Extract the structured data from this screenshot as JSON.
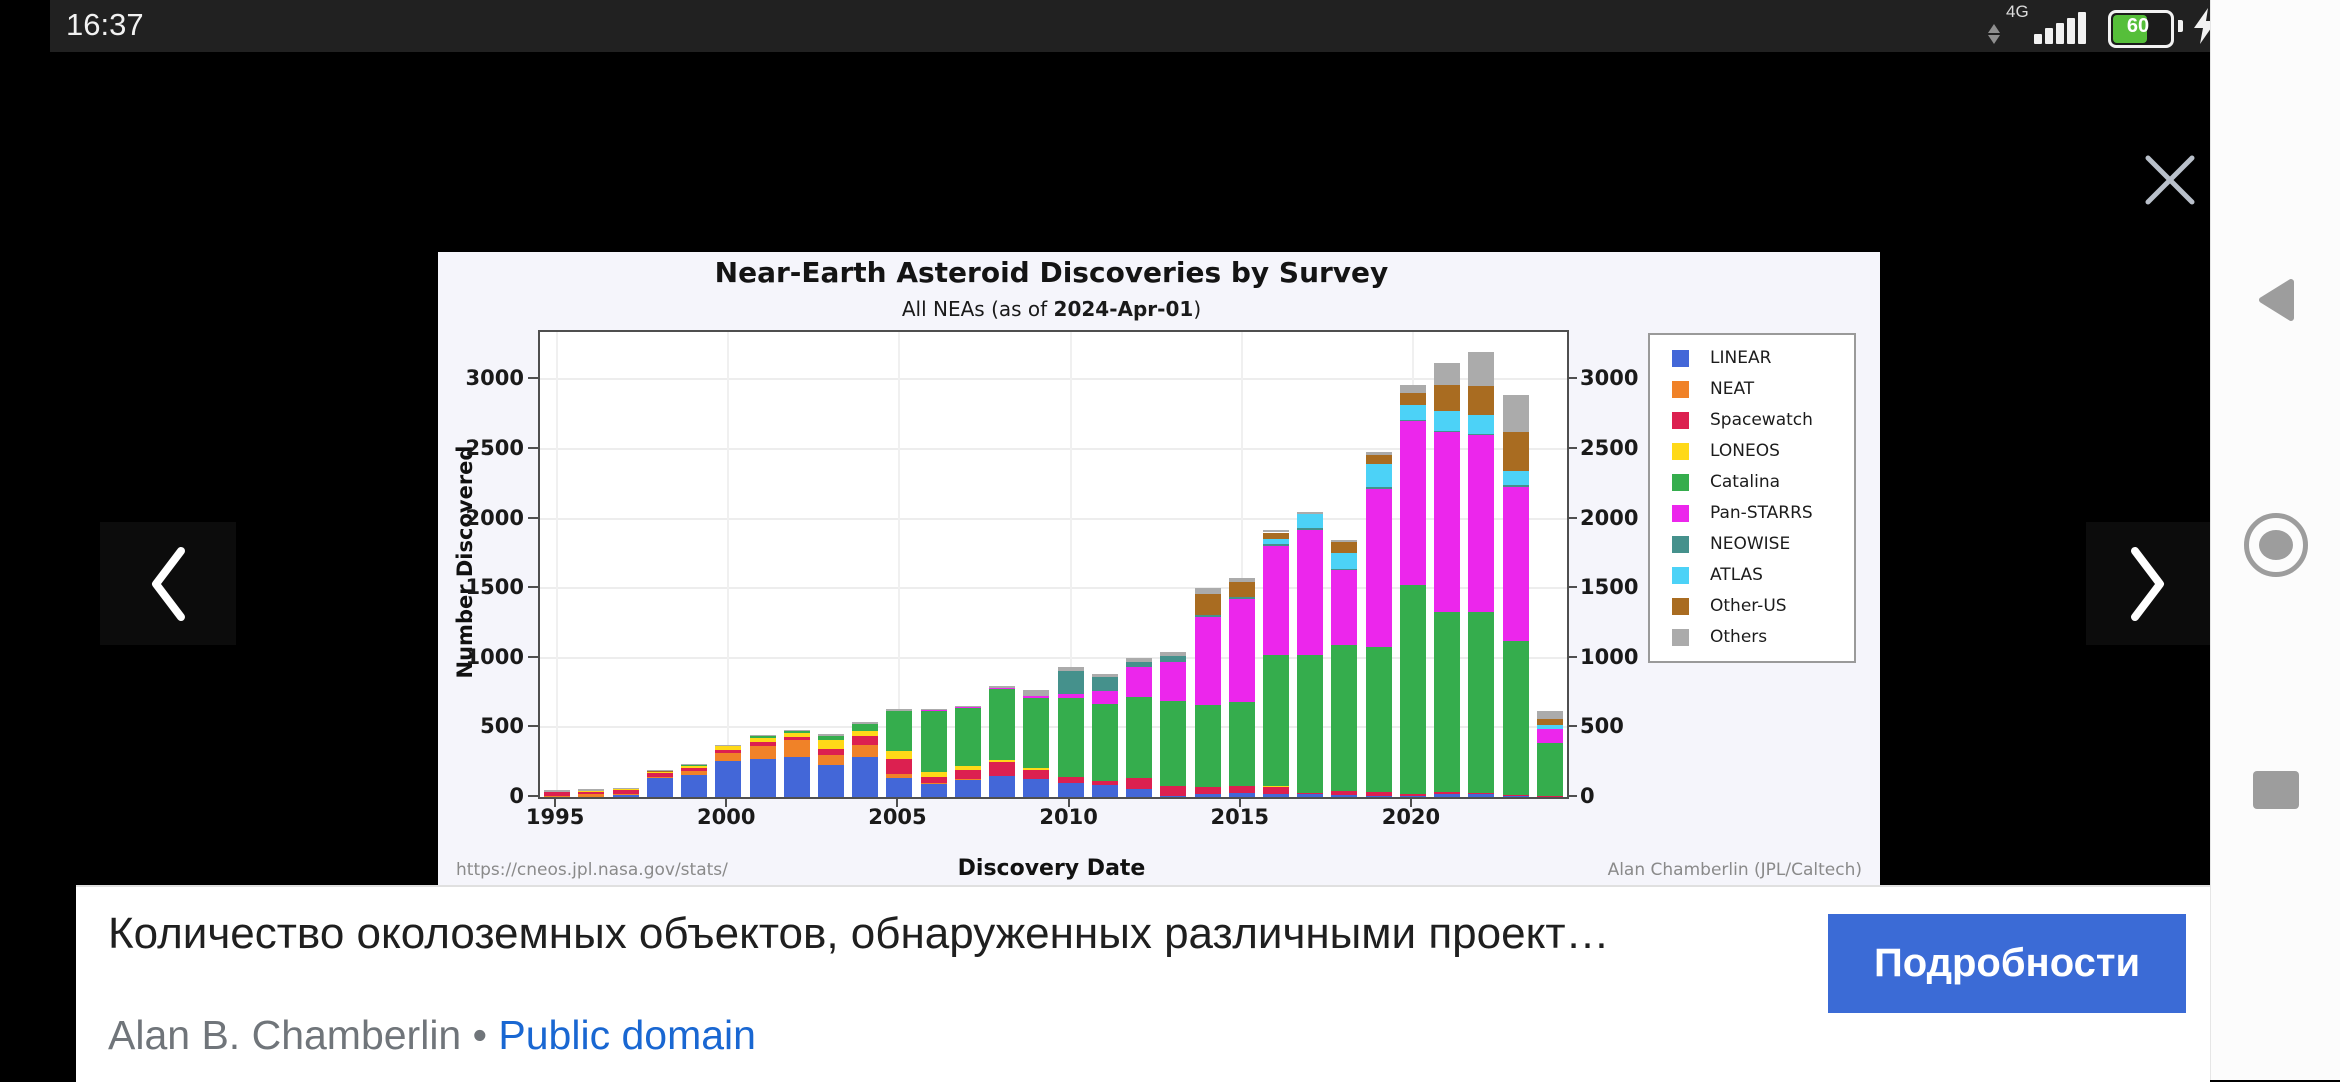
{
  "status_bar": {
    "time": "16:37",
    "network": "4G",
    "battery_percent": "60"
  },
  "caption": {
    "title": "Количество околоземных объектов, обнаруженных различными проект…",
    "details_label": "Подробности",
    "author": "Alan B. Chamberlin",
    "separator": "•",
    "license": "Public domain"
  },
  "chart_data": {
    "type": "bar",
    "stacked": true,
    "title": "Near-Earth Asteroid Discoveries by Survey",
    "subtitle_prefix": "All NEAs (as of ",
    "subtitle_date": "2024-Apr-01",
    "subtitle_suffix": ")",
    "xlabel": "Discovery Date",
    "ylabel": "Number Discovered",
    "footer_left": "https://cneos.jpl.nasa.gov/stats/",
    "footer_right": "Alan Chamberlin (JPL/Caltech)",
    "grid": true,
    "legend_position": "right",
    "ylim": [
      0,
      3340
    ],
    "yticks": [
      0,
      500,
      1000,
      1500,
      2000,
      2500,
      3000
    ],
    "xticks": [
      1995,
      2000,
      2005,
      2010,
      2015,
      2020
    ],
    "years": [
      1995,
      1996,
      1997,
      1998,
      1999,
      2000,
      2001,
      2002,
      2003,
      2004,
      2005,
      2006,
      2007,
      2008,
      2009,
      2010,
      2011,
      2012,
      2013,
      2014,
      2015,
      2016,
      2017,
      2018,
      2019,
      2020,
      2021,
      2022,
      2023,
      2024
    ],
    "series": [
      {
        "name": "LINEAR",
        "color": "#4367d8",
        "values": [
          0,
          0,
          15,
          135,
          160,
          258,
          276,
          286,
          232,
          285,
          137,
          97,
          123,
          151,
          130,
          98,
          85,
          60,
          10,
          20,
          30,
          20,
          25,
          15,
          10,
          10,
          25,
          20,
          5,
          0
        ]
      },
      {
        "name": "NEAT",
        "color": "#f08228",
        "values": [
          10,
          20,
          6,
          8,
          25,
          55,
          88,
          120,
          68,
          90,
          27,
          5,
          3,
          3,
          2,
          0,
          0,
          0,
          0,
          0,
          0,
          0,
          0,
          0,
          0,
          0,
          0,
          0,
          0,
          0
        ]
      },
      {
        "name": "Spacewatch",
        "color": "#dc2050",
        "values": [
          25,
          18,
          28,
          28,
          25,
          26,
          30,
          28,
          47,
          60,
          110,
          40,
          70,
          97,
          65,
          43,
          30,
          75,
          70,
          55,
          50,
          55,
          5,
          30,
          25,
          15,
          10,
          10,
          10,
          5
        ]
      },
      {
        "name": "LONEOS",
        "color": "#ffd918",
        "values": [
          0,
          3,
          5,
          8,
          12,
          24,
          28,
          28,
          62,
          40,
          56,
          36,
          24,
          12,
          8,
          0,
          0,
          0,
          0,
          0,
          0,
          5,
          0,
          0,
          0,
          0,
          0,
          0,
          0,
          0
        ]
      },
      {
        "name": "Catalina",
        "color": "#35ad4d",
        "values": [
          0,
          0,
          0,
          4,
          6,
          2,
          13,
          10,
          30,
          50,
          290,
          440,
          420,
          510,
          505,
          572,
          550,
          585,
          610,
          585,
          600,
          940,
          990,
          1045,
          1045,
          1495,
          1295,
          1300,
          1105,
          385
        ]
      },
      {
        "name": "Pan-STARRS",
        "color": "#ec26ec",
        "values": [
          0,
          0,
          0,
          0,
          0,
          0,
          0,
          0,
          0,
          0,
          0,
          4,
          3,
          12,
          15,
          30,
          95,
          215,
          280,
          630,
          740,
          780,
          900,
          540,
          1130,
          1180,
          1290,
          1270,
          1110,
          100
        ]
      },
      {
        "name": "NEOWISE",
        "color": "#45918c",
        "values": [
          0,
          0,
          0,
          0,
          0,
          0,
          0,
          0,
          0,
          0,
          0,
          0,
          0,
          0,
          0,
          160,
          100,
          35,
          40,
          15,
          15,
          15,
          10,
          10,
          15,
          10,
          10,
          10,
          10,
          0
        ]
      },
      {
        "name": "ATLAS",
        "color": "#4cd2f7",
        "values": [
          0,
          0,
          0,
          0,
          0,
          0,
          0,
          0,
          0,
          0,
          0,
          0,
          0,
          0,
          0,
          0,
          0,
          0,
          0,
          0,
          0,
          35,
          100,
          115,
          170,
          105,
          140,
          135,
          100,
          30
        ]
      },
      {
        "name": "Other-US",
        "color": "#a96c21",
        "values": [
          3,
          3,
          3,
          2,
          0,
          0,
          0,
          0,
          0,
          0,
          0,
          0,
          0,
          0,
          0,
          0,
          0,
          0,
          0,
          155,
          110,
          50,
          0,
          75,
          65,
          85,
          190,
          205,
          280,
          40
        ]
      },
      {
        "name": "Others",
        "color": "#ababab",
        "values": [
          2,
          2,
          2,
          2,
          2,
          2,
          2,
          3,
          3,
          2,
          2,
          3,
          1,
          15,
          45,
          28,
          25,
          30,
          30,
          40,
          25,
          15,
          20,
          15,
          15,
          60,
          155,
          245,
          270,
          55
        ]
      }
    ]
  }
}
